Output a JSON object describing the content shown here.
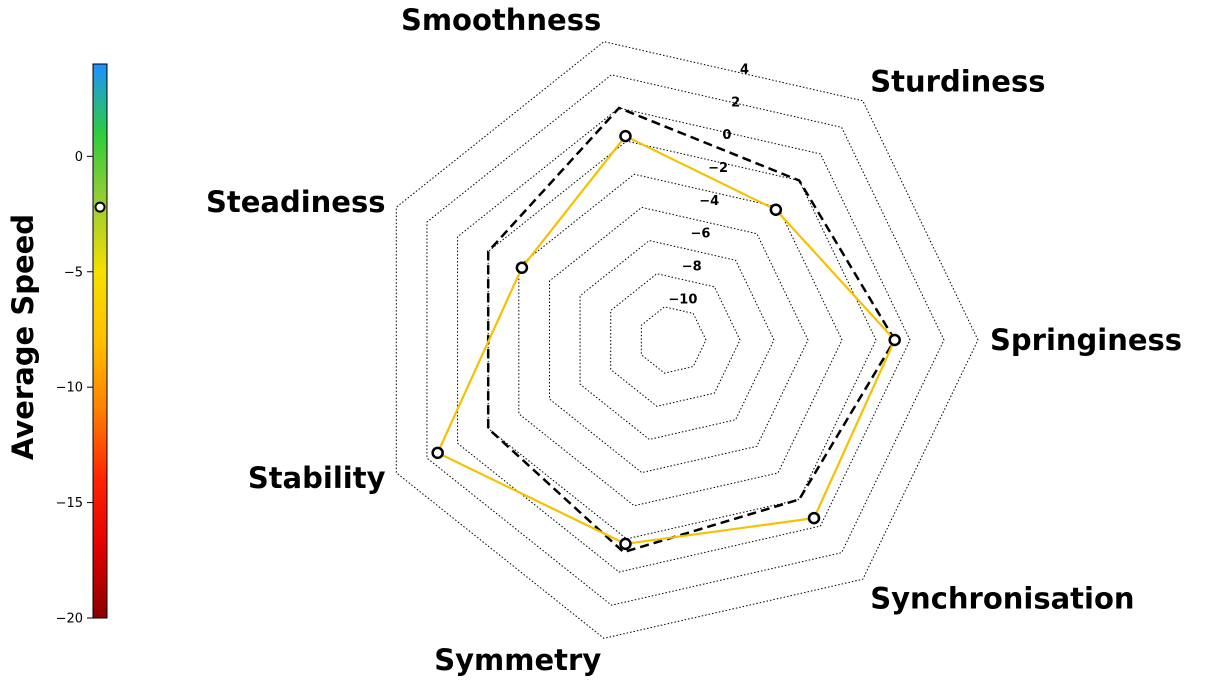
{
  "chart_data": {
    "type": "radar",
    "axes": [
      "Springiness",
      "Sturdiness",
      "Smoothness",
      "Steadiness",
      "Stability",
      "Symmetry",
      "Synchronisation"
    ],
    "rlim": [
      -12,
      6
    ],
    "ring_values": [
      -10,
      -8,
      -6,
      -4,
      -2,
      0,
      2,
      4
    ],
    "ring_labels": [
      "−10",
      "−8",
      "−6",
      "−4",
      "−2",
      "0",
      "2",
      "4"
    ],
    "grid": true,
    "series": [
      {
        "values": [
          1.1,
          -2.2,
          0.3,
          -2.2,
          3.3,
          0.3,
          1.4
        ],
        "color": "#f5c100",
        "style": "solid",
        "markers": true
      },
      {
        "values": [
          1.1,
          0.0,
          2.0,
          0.0,
          0.0,
          0.8,
          0.0
        ],
        "color": "#000000",
        "style": "dashed",
        "markers": false
      }
    ],
    "colorbar": {
      "label": "Average Speed",
      "range": [
        -20,
        4
      ],
      "ticks": [
        0,
        -5,
        -10,
        -15,
        -20
      ],
      "tick_labels": [
        "0",
        "−5",
        "−10",
        "−15",
        "−20"
      ],
      "marker_value": -2.2,
      "colors": [
        "#8b0000",
        "#e00000",
        "#ff2200",
        "#ff7f00",
        "#ffc000",
        "#f5e000",
        "#9acd32",
        "#2ecc40",
        "#1e90ff"
      ]
    }
  }
}
